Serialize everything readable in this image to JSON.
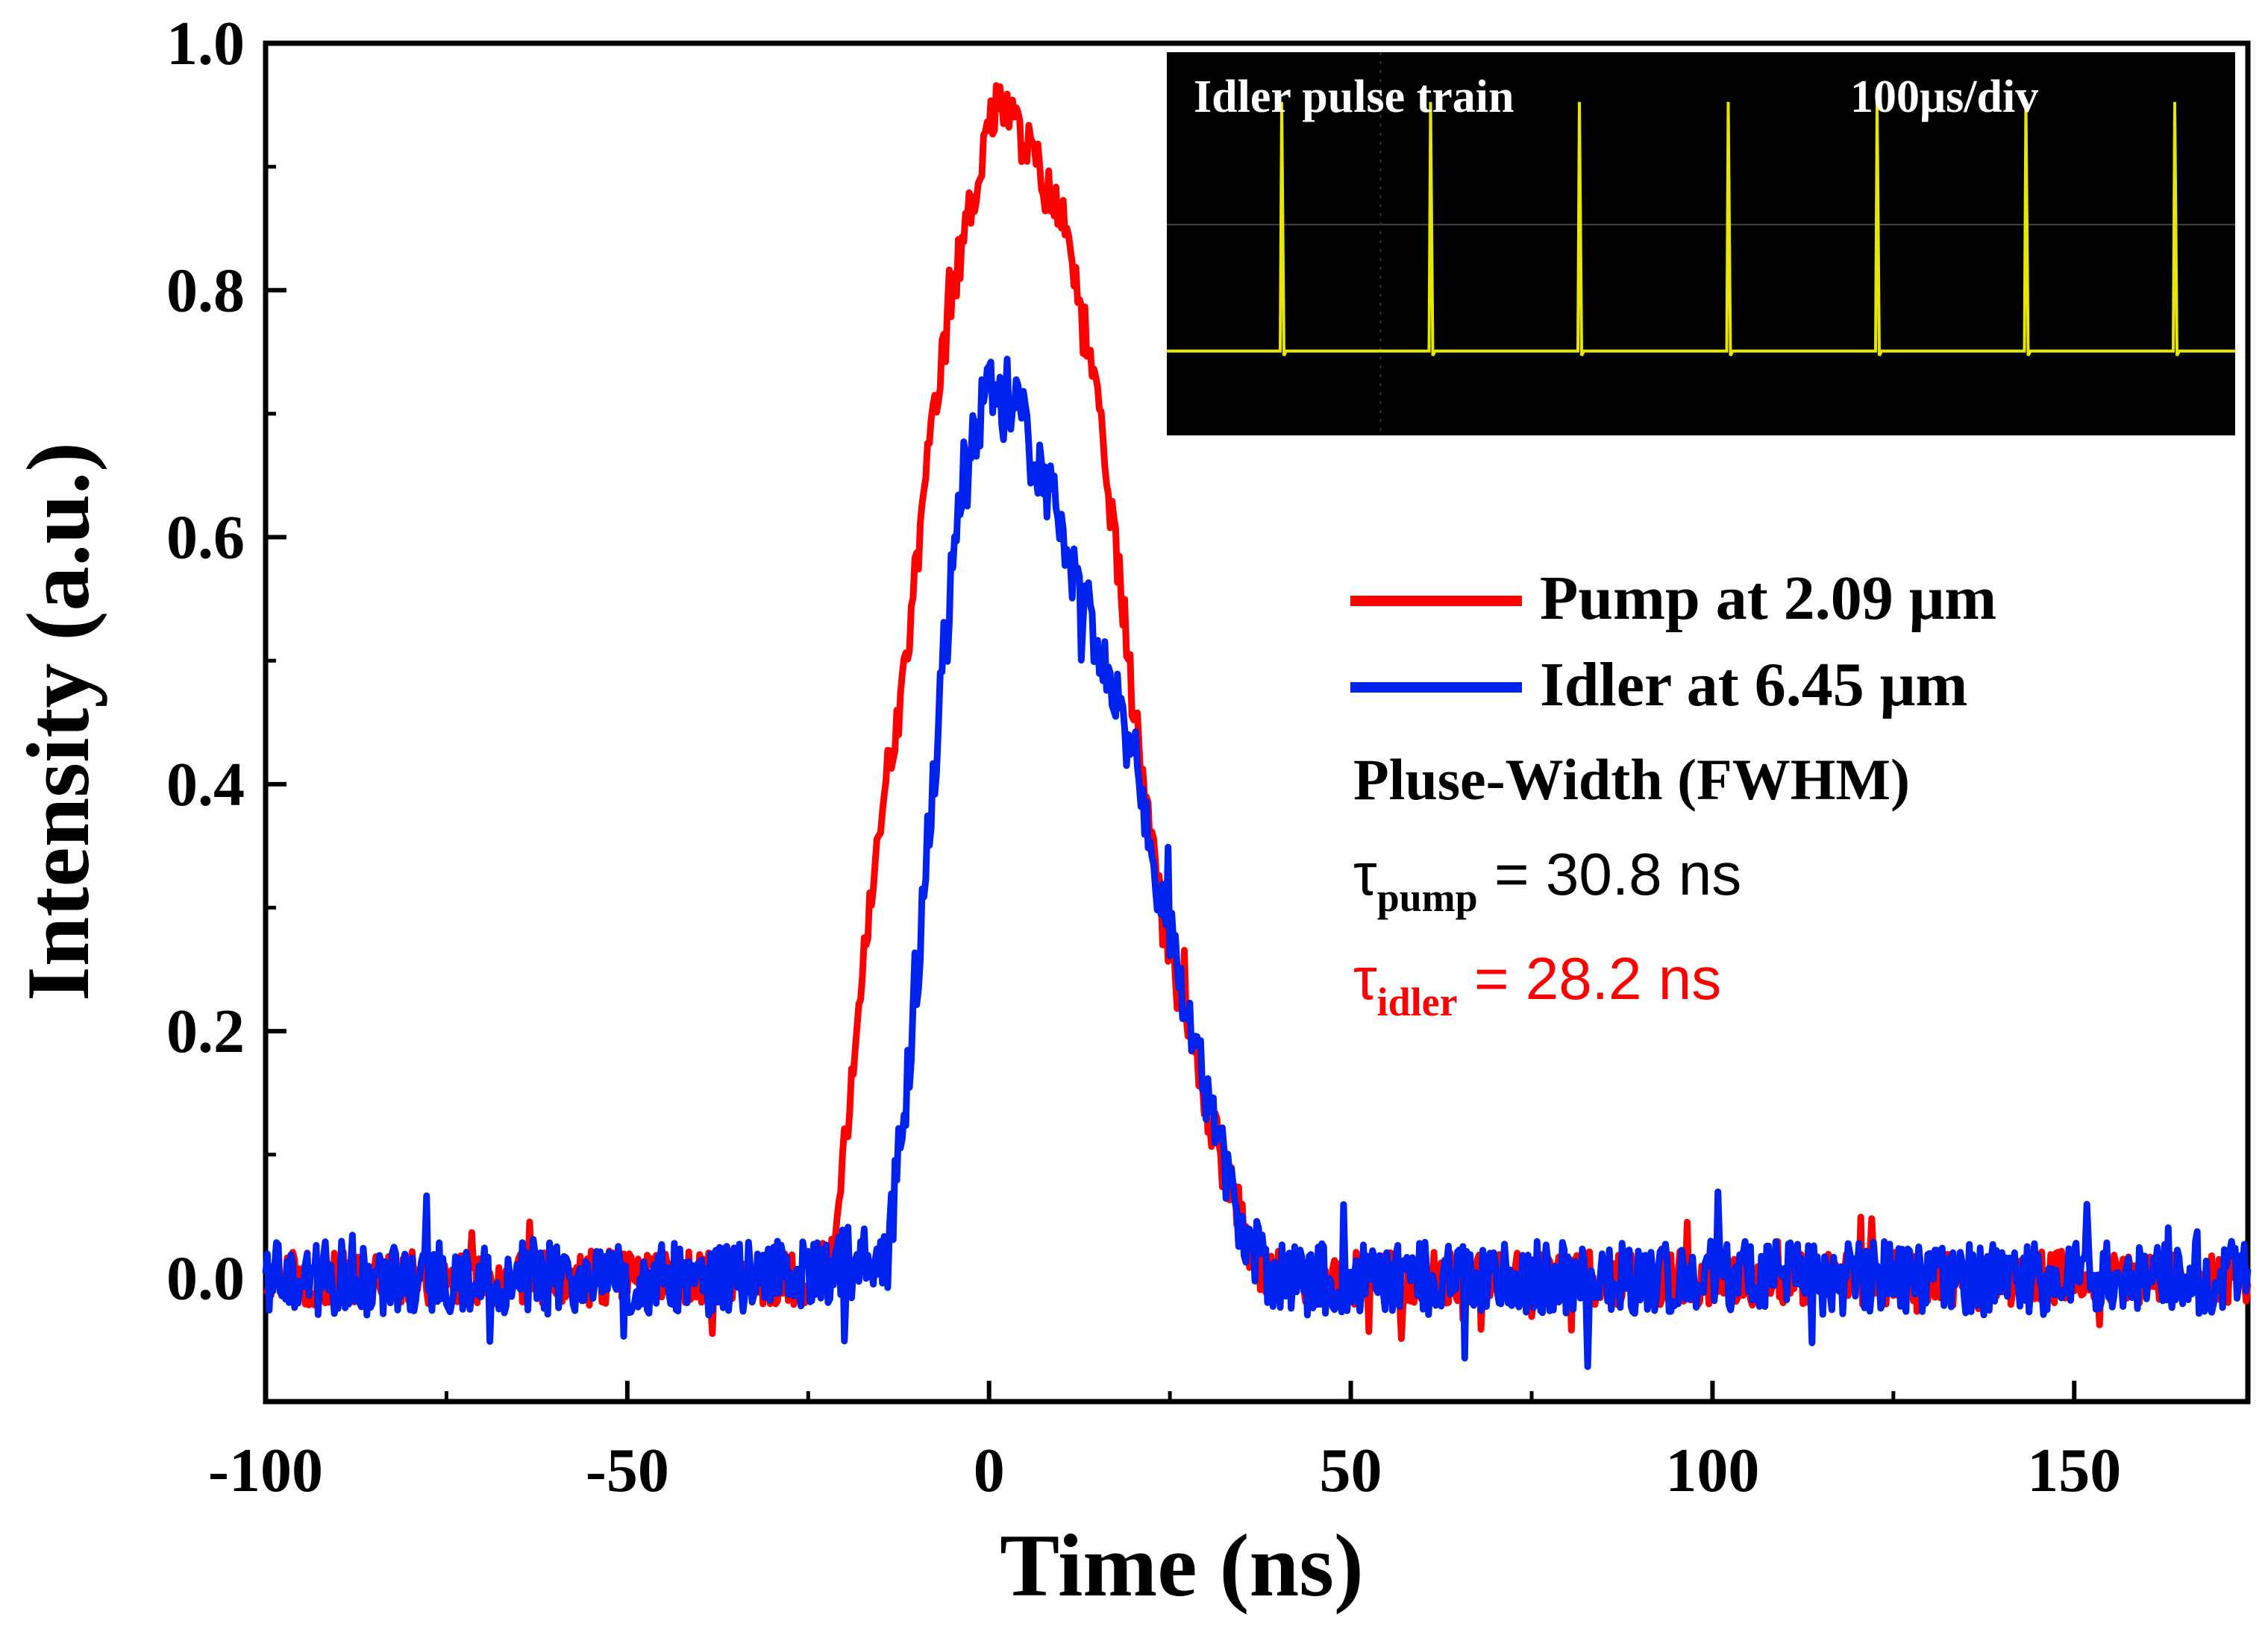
{
  "chart_data": {
    "type": "line",
    "xlabel": "Time (ns)",
    "ylabel": "Intensity (a.u.)",
    "xlim": [
      -100,
      174
    ],
    "ylim": [
      -0.1,
      1.0
    ],
    "x_ticks": [
      -100,
      -50,
      0,
      50,
      100,
      150
    ],
    "x_tick_labels": [
      "-100",
      "-50",
      "0",
      "50",
      "100",
      "150"
    ],
    "y_ticks": [
      0.0,
      0.2,
      0.4,
      0.6,
      0.8,
      1.0
    ],
    "y_tick_labels": [
      "0.0",
      "0.2",
      "0.4",
      "0.6",
      "0.8",
      "1.0"
    ],
    "series": [
      {
        "name": "Pump at 2.09 μm",
        "color": "#ff0000",
        "x": [
          -100,
          -60,
          -30,
          -22,
          -20,
          -18,
          -16,
          -14,
          -12,
          -10,
          -8,
          -6,
          -4,
          -2,
          0,
          2,
          4,
          6,
          8,
          10,
          12,
          14,
          16,
          18,
          20,
          22,
          24,
          26,
          28,
          30,
          32,
          34,
          36,
          38,
          40,
          60,
          100,
          140,
          174
        ],
        "y": [
          0.0,
          0.0,
          0.0,
          0.0,
          0.1,
          0.22,
          0.32,
          0.41,
          0.47,
          0.58,
          0.68,
          0.76,
          0.83,
          0.88,
          0.94,
          0.95,
          0.93,
          0.91,
          0.88,
          0.86,
          0.82,
          0.74,
          0.66,
          0.57,
          0.46,
          0.38,
          0.3,
          0.24,
          0.19,
          0.14,
          0.1,
          0.06,
          0.03,
          0.0,
          0.0,
          0.0,
          0.0,
          0.0,
          0.0
        ]
      },
      {
        "name": "Idler at 6.45 μm",
        "color": "#0022ee",
        "x": [
          -100,
          -60,
          -30,
          -14,
          -12,
          -10,
          -8,
          -6,
          -4,
          -2,
          0,
          2,
          4,
          6,
          8,
          10,
          12,
          14,
          16,
          18,
          20,
          22,
          24,
          26,
          28,
          30,
          32,
          34,
          36,
          38,
          40,
          60,
          100,
          140,
          174
        ],
        "y": [
          0.0,
          0.0,
          0.0,
          0.02,
          0.12,
          0.24,
          0.38,
          0.52,
          0.62,
          0.69,
          0.72,
          0.72,
          0.7,
          0.67,
          0.64,
          0.61,
          0.57,
          0.53,
          0.5,
          0.46,
          0.42,
          0.36,
          0.3,
          0.25,
          0.2,
          0.15,
          0.1,
          0.06,
          0.03,
          0.01,
          0.0,
          0.0,
          0.0,
          0.0,
          0.0
        ]
      }
    ],
    "legend_position": "right-center",
    "annotations": {
      "heading": "Pluse-Width (FWHM)",
      "tau_pump_symbol": "τ",
      "tau_pump_sub": "pump",
      "tau_pump_value": " = 30.8 ns",
      "tau_idler_symbol": "τ",
      "tau_idler_sub": "idler",
      "tau_idler_value": " = 28.2 ns"
    },
    "inset": {
      "title": "Idler pulse train",
      "timescale": "100μs/div",
      "trace_color": "#e6e600",
      "background": "#000000",
      "pulse_count": 7
    }
  }
}
